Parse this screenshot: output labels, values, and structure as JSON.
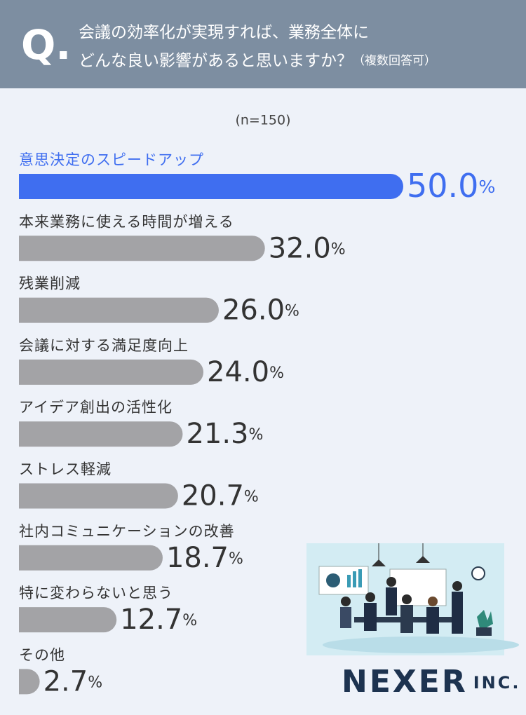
{
  "chart_data": {
    "type": "bar",
    "orientation": "horizontal",
    "title_mark": "Q.",
    "title_lines": [
      "会議の効率化が実現すれば、業務全体に",
      "どんな良い影響があると思いますか？"
    ],
    "title_note": "（複数回答可）",
    "subtitle": "(n=150)",
    "categories": [
      "意思決定のスピードアップ",
      "本来業務に使える時間が増える",
      "残業削減",
      "会議に対する満足度向上",
      "アイデア創出の活性化",
      "ストレス軽減",
      "社内コミュニケーションの改善",
      "特に変わらないと思う",
      "その他"
    ],
    "values": [
      50.0,
      32.0,
      26.0,
      24.0,
      21.3,
      20.7,
      18.7,
      12.7,
      2.7
    ],
    "value_labels": [
      "50.0%",
      "32.0%",
      "26.0%",
      "24.0%",
      "21.3%",
      "20.7%",
      "18.7%",
      "12.7%",
      "2.7%"
    ],
    "colors": [
      "#3f6ef0",
      "#a3a3a6",
      "#a3a3a6",
      "#a3a3a6",
      "#a3a3a6",
      "#a3a3a6",
      "#a3a3a6",
      "#a3a3a6",
      "#a3a3a6"
    ]
  },
  "logo": {
    "name": "NEXER",
    "suffix": "INC."
  }
}
